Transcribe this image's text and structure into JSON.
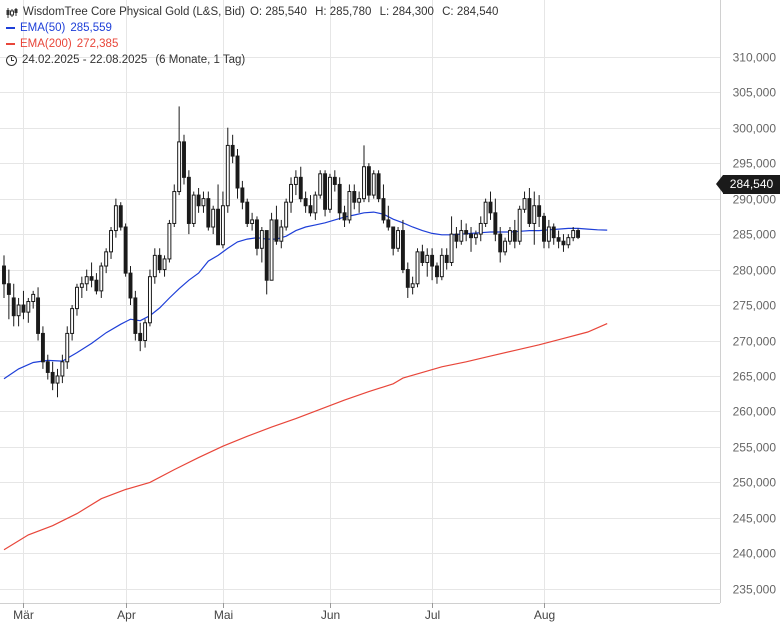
{
  "legend": {
    "instrument": "WisdomTree Core Physical Gold (L&S, Bid)",
    "ohlc": {
      "o": "O: 285,540",
      "h": "H: 285,780",
      "l": "L: 284,300",
      "c": "C: 284,540"
    },
    "ema50_label": "EMA(50)",
    "ema50_value": "285,559",
    "ema200_label": "EMA(200)",
    "ema200_value": "272,385",
    "period": "24.02.2025 - 22.08.2025",
    "period_note": "(6 Monate, 1 Tag)"
  },
  "colors": {
    "ema50": "#1e3fd8",
    "ema200": "#e8463a",
    "candle": "#1a1a1a",
    "grid": "#e6e6e6"
  },
  "current_price_label": "284,540",
  "chart_data": {
    "type": "candlestick",
    "title": "WisdomTree Core Physical Gold (L&S, Bid)",
    "ylim": [
      233000,
      318000
    ],
    "y_ticks": [
      235000,
      240000,
      245000,
      250000,
      255000,
      260000,
      265000,
      270000,
      275000,
      280000,
      285000,
      290000,
      295000,
      300000,
      305000,
      310000
    ],
    "y_tick_labels": [
      "235,000",
      "240,000",
      "245,000",
      "250,000",
      "255,000",
      "260,000",
      "265,000",
      "270,000",
      "275,000",
      "280,000",
      "285,000",
      "290,000",
      "295,000",
      "300,000",
      "305,000",
      "310,000"
    ],
    "x_ticks": [
      {
        "label": "Mär",
        "index": 4
      },
      {
        "label": "Apr",
        "index": 25
      },
      {
        "label": "Mai",
        "index": 45
      },
      {
        "label": "Jun",
        "index": 67
      },
      {
        "label": "Jul",
        "index": 88
      },
      {
        "label": "Aug",
        "index": 111
      }
    ],
    "total_slots": 148,
    "candles": [
      [
        280.5,
        282,
        276,
        278
      ],
      [
        278,
        280,
        273,
        276.5
      ],
      [
        276,
        278,
        272,
        273.5
      ],
      [
        273.5,
        276,
        272,
        275
      ],
      [
        275,
        277,
        273,
        274
      ],
      [
        274,
        276,
        272.5,
        275.5
      ],
      [
        275.5,
        277,
        274.5,
        276.5
      ],
      [
        276,
        277.5,
        270,
        271
      ],
      [
        271,
        272,
        266,
        267
      ],
      [
        267,
        268,
        264.5,
        265.5
      ],
      [
        265.5,
        267,
        263,
        264
      ],
      [
        264,
        266,
        262,
        265
      ],
      [
        265,
        268,
        264,
        267
      ],
      [
        267,
        272,
        266,
        271
      ],
      [
        271,
        275,
        270,
        274.5
      ],
      [
        274.5,
        278,
        273.5,
        277.5
      ],
      [
        277.5,
        279,
        276,
        278
      ],
      [
        278,
        280,
        277,
        279
      ],
      [
        279,
        281,
        277.5,
        278.5
      ],
      [
        278.5,
        279.5,
        276.5,
        277
      ],
      [
        277,
        281,
        276,
        280.5
      ],
      [
        280.5,
        283,
        279.5,
        282.5
      ],
      [
        282.5,
        286,
        281.5,
        285.5
      ],
      [
        285.5,
        290,
        284.5,
        289
      ],
      [
        289,
        289.5,
        285.5,
        286
      ],
      [
        286,
        286.5,
        279,
        279.5
      ],
      [
        279.5,
        280.5,
        275,
        276
      ],
      [
        276,
        277,
        270,
        271
      ],
      [
        271,
        272.5,
        268.5,
        270
      ],
      [
        270,
        273,
        269,
        272.5
      ],
      [
        272.5,
        280,
        272,
        279
      ],
      [
        279,
        283,
        278,
        282
      ],
      [
        282,
        283,
        279.5,
        280
      ],
      [
        280,
        282,
        279,
        281.5
      ],
      [
        281.5,
        287,
        281,
        286.5
      ],
      [
        286.5,
        292,
        286,
        291
      ],
      [
        291,
        303,
        290.5,
        298
      ],
      [
        298,
        299,
        292,
        293
      ],
      [
        293,
        294,
        285,
        286.5
      ],
      [
        286.5,
        291,
        286,
        290.5
      ],
      [
        290.5,
        291.5,
        288,
        289
      ],
      [
        289,
        291,
        288,
        290
      ],
      [
        290,
        291,
        285.5,
        286
      ],
      [
        286,
        289,
        285,
        288.5
      ],
      [
        288.5,
        292,
        285,
        283.5
      ],
      [
        283.5,
        291,
        283,
        289
      ],
      [
        289,
        300,
        288,
        297.5
      ],
      [
        297.5,
        299,
        295,
        296
      ],
      [
        296,
        297,
        290,
        291.5
      ],
      [
        291.5,
        292.5,
        288.5,
        289.5
      ],
      [
        289.5,
        290,
        286,
        286.5
      ],
      [
        286.5,
        288,
        285.5,
        287
      ],
      [
        287,
        287.5,
        282,
        283
      ],
      [
        283,
        286,
        281,
        285.5
      ],
      [
        285.5,
        285.5,
        276.5,
        278.5
      ],
      [
        278.5,
        288,
        281,
        287
      ],
      [
        287,
        289,
        283.5,
        284
      ],
      [
        284,
        287,
        283,
        286
      ],
      [
        286,
        290,
        285.5,
        289.5
      ],
      [
        289.5,
        293,
        288,
        292
      ],
      [
        292,
        294,
        290.5,
        293
      ],
      [
        293,
        294.5,
        289.5,
        290
      ],
      [
        290,
        291,
        288,
        289
      ],
      [
        289,
        290.5,
        287.5,
        288
      ],
      [
        288,
        291,
        287,
        290.5
      ],
      [
        290.5,
        294,
        290,
        293.5
      ],
      [
        293.5,
        294,
        287.5,
        288.5
      ],
      [
        288.5,
        293.5,
        288,
        293
      ],
      [
        293,
        294,
        291,
        292
      ],
      [
        292,
        293,
        287,
        288
      ],
      [
        288,
        289,
        286,
        287
      ],
      [
        287,
        292,
        286.5,
        291
      ],
      [
        291,
        292,
        288.5,
        289.5
      ],
      [
        289.5,
        291,
        288,
        290
      ],
      [
        290,
        297.5,
        289.5,
        294.5
      ],
      [
        294.5,
        295,
        289.5,
        290.5
      ],
      [
        290.5,
        294,
        290,
        293.5
      ],
      [
        293.5,
        294,
        289.5,
        290
      ],
      [
        290,
        292,
        286.5,
        287
      ],
      [
        287,
        289,
        285.5,
        286
      ],
      [
        286,
        285.5,
        282,
        283
      ],
      [
        283,
        286,
        282.5,
        285.5
      ],
      [
        285.5,
        287,
        279.5,
        280
      ],
      [
        280,
        281,
        276,
        277.5
      ],
      [
        277.5,
        279,
        276.5,
        278
      ],
      [
        278,
        283,
        277.5,
        282.5
      ],
      [
        282.5,
        283.5,
        280.5,
        281
      ],
      [
        281,
        283,
        279,
        282
      ],
      [
        282,
        283,
        278.5,
        280.5
      ],
      [
        280.5,
        281,
        278,
        279
      ],
      [
        279,
        283,
        278.5,
        282
      ],
      [
        282,
        283,
        280,
        281
      ],
      [
        281,
        287.5,
        280.5,
        285
      ],
      [
        285,
        286,
        283,
        284
      ],
      [
        284,
        287,
        283.5,
        285.5
      ],
      [
        285.5,
        286.5,
        284,
        285
      ],
      [
        285,
        286,
        282.5,
        284.5
      ],
      [
        284.5,
        285.5,
        283.5,
        285
      ],
      [
        285,
        287.5,
        284,
        286.5
      ],
      [
        286.5,
        290,
        286,
        289.5
      ],
      [
        289.5,
        291,
        287,
        288
      ],
      [
        288,
        290,
        284,
        285
      ],
      [
        285,
        286,
        281,
        282.5
      ],
      [
        282.5,
        284.5,
        282,
        284
      ],
      [
        284,
        286,
        283.5,
        285.5
      ],
      [
        285.5,
        287,
        283,
        284
      ],
      [
        284,
        289,
        283.5,
        288.5
      ],
      [
        288.5,
        291,
        288,
        290
      ],
      [
        290,
        291.5,
        286,
        286.5
      ],
      [
        286.5,
        291,
        283.5,
        289
      ],
      [
        289,
        290.5,
        286,
        287.5
      ],
      [
        287.5,
        288,
        283,
        284
      ],
      [
        284,
        287,
        283,
        286
      ],
      [
        286,
        286.5,
        283.5,
        284.5
      ],
      [
        284.5,
        285.5,
        283,
        284
      ],
      [
        284,
        285,
        282.5,
        283.5
      ],
      [
        283.5,
        285,
        283,
        284.5
      ],
      [
        284.5,
        286,
        284,
        285.5
      ],
      [
        285.5,
        285.8,
        284.3,
        284.54
      ]
    ],
    "ema50": [
      [
        0,
        264.6
      ],
      [
        3,
        266.0
      ],
      [
        6,
        266.9
      ],
      [
        9,
        267.2
      ],
      [
        12,
        267.1
      ],
      [
        15,
        268.3
      ],
      [
        18,
        269.6
      ],
      [
        21,
        271.1
      ],
      [
        24,
        272.3
      ],
      [
        26,
        273.0
      ],
      [
        28,
        272.8
      ],
      [
        30,
        273.5
      ],
      [
        32,
        274.6
      ],
      [
        34,
        276.0
      ],
      [
        36,
        277.3
      ],
      [
        38,
        278.5
      ],
      [
        40,
        279.5
      ],
      [
        42,
        281.2
      ],
      [
        44,
        282.0
      ],
      [
        46,
        283.0
      ],
      [
        48,
        283.9
      ],
      [
        50,
        284.3
      ],
      [
        52,
        284.5
      ],
      [
        54,
        284.3
      ],
      [
        56,
        284.3
      ],
      [
        58,
        284.7
      ],
      [
        60,
        285.5
      ],
      [
        62,
        286.0
      ],
      [
        64,
        286.3
      ],
      [
        66,
        286.6
      ],
      [
        68,
        287.0
      ],
      [
        70,
        287.4
      ],
      [
        72,
        287.7
      ],
      [
        74,
        288.0
      ],
      [
        76,
        288.1
      ],
      [
        78,
        287.8
      ],
      [
        80,
        287.1
      ],
      [
        82,
        286.6
      ],
      [
        84,
        286.0
      ],
      [
        86,
        285.5
      ],
      [
        88,
        285.1
      ],
      [
        90,
        284.9
      ],
      [
        92,
        284.9
      ],
      [
        94,
        285.0
      ],
      [
        96,
        285.1
      ],
      [
        98,
        285.2
      ],
      [
        100,
        285.3
      ],
      [
        102,
        285.3
      ],
      [
        104,
        285.3
      ],
      [
        106,
        285.4
      ],
      [
        108,
        285.5
      ],
      [
        110,
        285.5
      ],
      [
        112,
        285.6
      ],
      [
        114,
        285.7
      ],
      [
        116,
        285.8
      ],
      [
        118,
        285.8
      ],
      [
        120,
        285.7
      ],
      [
        122,
        285.6
      ],
      [
        124,
        285.559
      ]
    ],
    "ema200": [
      [
        0,
        240.5
      ],
      [
        5,
        242.6
      ],
      [
        10,
        243.9
      ],
      [
        15,
        245.6
      ],
      [
        20,
        247.7
      ],
      [
        25,
        249.0
      ],
      [
        30,
        250.0
      ],
      [
        35,
        251.8
      ],
      [
        40,
        253.5
      ],
      [
        45,
        255.1
      ],
      [
        50,
        256.5
      ],
      [
        55,
        257.8
      ],
      [
        60,
        259.0
      ],
      [
        65,
        260.3
      ],
      [
        70,
        261.6
      ],
      [
        75,
        262.8
      ],
      [
        80,
        263.9
      ],
      [
        82,
        264.7
      ],
      [
        86,
        265.5
      ],
      [
        90,
        266.3
      ],
      [
        95,
        267.0
      ],
      [
        100,
        267.8
      ],
      [
        105,
        268.6
      ],
      [
        110,
        269.4
      ],
      [
        115,
        270.3
      ],
      [
        120,
        271.2
      ],
      [
        124,
        272.385
      ]
    ]
  }
}
